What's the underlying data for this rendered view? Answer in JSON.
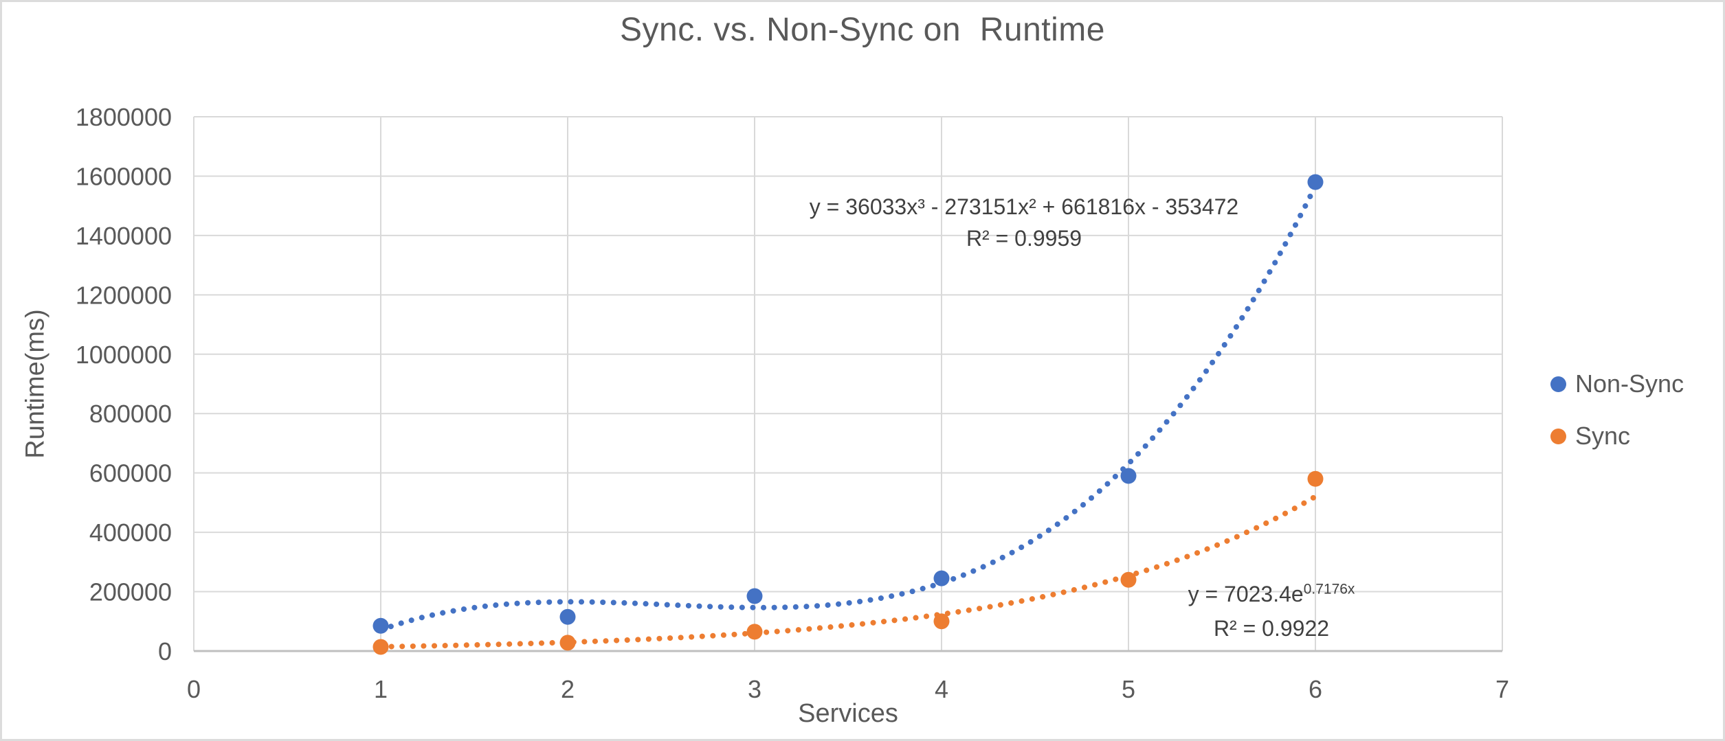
{
  "chart": {
    "type": "scatter",
    "title": "Sync. vs. Non-Sync on  Runtime",
    "xlabel": "Services",
    "ylabel": "Runtime(ms)",
    "xlim": [
      0,
      7
    ],
    "ylim": [
      0,
      1800000
    ],
    "x_ticks": [
      0,
      1,
      2,
      3,
      4,
      5,
      6,
      7
    ],
    "y_ticks": [
      0,
      200000,
      400000,
      600000,
      800000,
      1000000,
      1200000,
      1400000,
      1600000,
      1800000
    ],
    "grid": true,
    "legend_position": "right",
    "x": [
      1,
      2,
      3,
      4,
      5,
      6
    ],
    "series": [
      {
        "name": "Non-Sync",
        "color": "#4472C4",
        "values": [
          85000,
          115000,
          185000,
          245000,
          590000,
          1580000
        ],
        "trendline": {
          "type": "polynomial",
          "coefficients": [
            36033,
            -273151,
            661816,
            -353472
          ],
          "x_range": [
            1,
            6
          ],
          "equation": "y = 36033x³ - 273151x² + 661816x - 353472",
          "r_squared": "R² = 0.9959"
        }
      },
      {
        "name": "Sync",
        "color": "#ED7D31",
        "values": [
          14000,
          28000,
          65000,
          100000,
          240000,
          580000
        ],
        "trendline": {
          "type": "exponential",
          "a": 7023.4,
          "b": 0.7176,
          "x_range": [
            1,
            6
          ],
          "equation_base": "y = 7023.4e",
          "equation_exponent": "0.7176x",
          "r_squared": "R² = 0.9922"
        }
      }
    ],
    "colors": {
      "gridline": "#D9D9D9",
      "axis_line": "#BFBFBF",
      "text": "#595959",
      "equation_text": "#404040"
    }
  }
}
